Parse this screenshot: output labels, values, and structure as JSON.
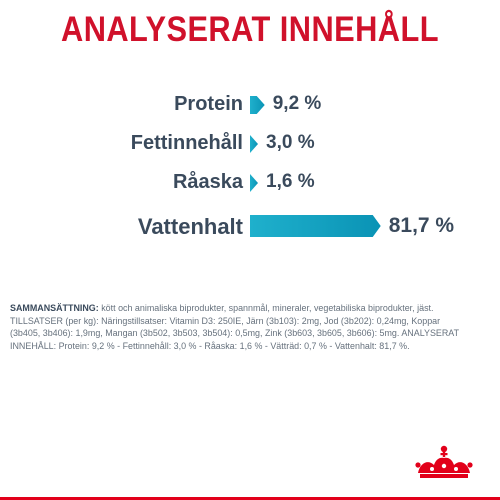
{
  "title": "ANALYSERAT INNEHÅLL",
  "chart_data": {
    "type": "bar",
    "categories": [
      "Protein",
      "Fettinnehåll",
      "Råaska",
      "Vattenhalt"
    ],
    "values": [
      9.2,
      3.0,
      1.6,
      81.7
    ],
    "value_labels": [
      "9,2 %",
      "3,0 %",
      "1,6 %",
      "81,7 %"
    ],
    "orientation": "horizontal",
    "color": "#1aa7c4",
    "xlim": [
      0,
      100
    ]
  },
  "ingredients": {
    "label": "SAMMANSÄTTNING:",
    "text": " kött och animaliska biprodukter, spannmål, mineraler, vegetabiliska biprodukter, jäst. TILLSATSER (per kg): Näringstillsatser: Vitamin D3: 250IE, Järn (3b103): 2mg, Jod (3b202): 0,24mg, Koppar (3b405, 3b406): 1,9mg, Mangan (3b502, 3b503, 3b504): 0,5mg, Zink (3b603, 3b605, 3b606): 5mg. ANALYSERAT INNEHÅLL: Protein: 9,2 % - Fettinnehåll: 3,0 % - Råaska: 1,6 % - Vätträd: 0,7 % - Vattenhalt: 81,7 %."
  },
  "brand": {
    "logo": "crown-logo-icon",
    "color": "#e2001a"
  }
}
